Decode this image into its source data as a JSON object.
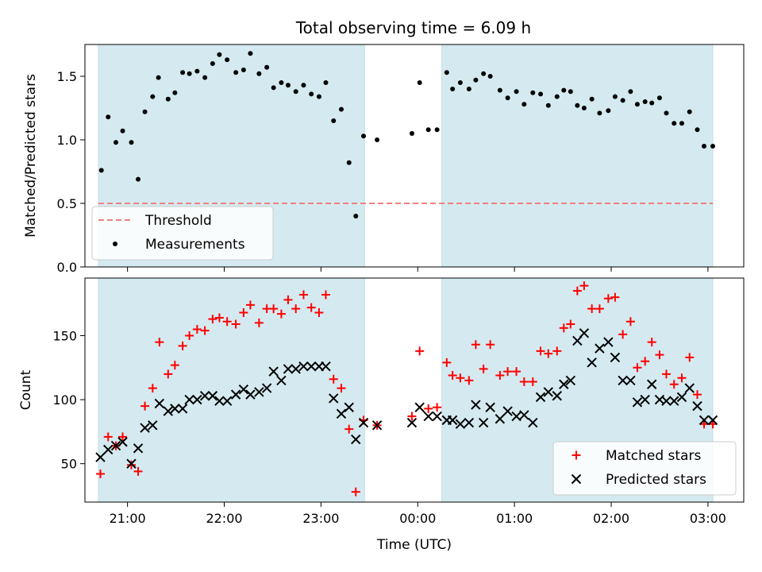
{
  "figure": {
    "title": "Total observing time = 6.09 h",
    "xlabel": "Time (UTC)",
    "x_ticks": [
      "21:00",
      "22:00",
      "23:00",
      "00:00",
      "01:00",
      "02:00",
      "03:00"
    ],
    "x_tick_hours": [
      21,
      22,
      23,
      24,
      25,
      26,
      27
    ],
    "xlim_hours": [
      20.56,
      27.37
    ],
    "shade_color": "#d4eaf0",
    "shaded_intervals_hours": [
      [
        20.7,
        23.45
      ],
      [
        24.25,
        27.05
      ]
    ]
  },
  "chart_data": [
    {
      "type": "scatter",
      "panel": "top",
      "ylabel": "Matched/Predicted stars",
      "ylim": [
        0,
        1.75
      ],
      "y_ticks": [
        0.0,
        0.5,
        1.0,
        1.5
      ],
      "y_tick_labels": [
        "0.0",
        "0.5",
        "1.0",
        "1.5"
      ],
      "legend_position": "lower-left",
      "threshold": {
        "name": "Threshold",
        "value": 0.5,
        "color": "#f08080",
        "x_range_hours": [
          20.7,
          27.05
        ]
      },
      "series": [
        {
          "name": "Measurements",
          "color": "#000000",
          "marker": "dot",
          "x": [
            20.73,
            20.8,
            20.88,
            20.95,
            21.04,
            21.11,
            21.18,
            21.26,
            21.32,
            21.42,
            21.49,
            21.57,
            21.64,
            21.72,
            21.8,
            21.88,
            21.95,
            22.03,
            22.12,
            22.2,
            22.27,
            22.36,
            22.44,
            22.51,
            22.59,
            22.66,
            22.74,
            22.82,
            22.9,
            22.98,
            23.05,
            23.13,
            23.21,
            23.29,
            23.36,
            23.44,
            23.58,
            23.94,
            24.02,
            24.11,
            24.2,
            24.3,
            24.36,
            24.44,
            24.53,
            24.6,
            24.68,
            24.75,
            24.85,
            24.93,
            25.02,
            25.1,
            25.19,
            25.27,
            25.35,
            25.44,
            25.51,
            25.58,
            25.65,
            25.72,
            25.8,
            25.88,
            25.97,
            26.04,
            26.12,
            26.2,
            26.27,
            26.35,
            26.42,
            26.5,
            26.57,
            26.65,
            26.73,
            26.81,
            26.89,
            26.96,
            27.05
          ],
          "y": [
            0.76,
            1.18,
            0.98,
            1.07,
            0.98,
            0.69,
            1.22,
            1.34,
            1.49,
            1.32,
            1.37,
            1.53,
            1.52,
            1.54,
            1.49,
            1.6,
            1.67,
            1.63,
            1.53,
            1.55,
            1.68,
            1.52,
            1.57,
            1.41,
            1.45,
            1.43,
            1.38,
            1.43,
            1.36,
            1.34,
            1.45,
            1.15,
            1.24,
            0.82,
            0.4,
            1.03,
            1.0,
            1.05,
            1.45,
            1.08,
            1.08,
            1.53,
            1.4,
            1.45,
            1.4,
            1.47,
            1.52,
            1.5,
            1.39,
            1.33,
            1.38,
            1.28,
            1.37,
            1.36,
            1.27,
            1.34,
            1.39,
            1.38,
            1.27,
            1.25,
            1.32,
            1.21,
            1.23,
            1.34,
            1.31,
            1.38,
            1.28,
            1.3,
            1.29,
            1.33,
            1.21,
            1.13,
            1.13,
            1.22,
            1.08,
            0.95,
            0.95
          ]
        }
      ]
    },
    {
      "type": "scatter",
      "panel": "bottom",
      "ylabel": "Count",
      "ylim": [
        20,
        195
      ],
      "y_ticks": [
        50,
        100,
        150
      ],
      "y_tick_labels": [
        "50",
        "100",
        "150"
      ],
      "legend_position": "lower-right",
      "series": [
        {
          "name": "Matched stars",
          "color": "#ff0000",
          "marker": "plus",
          "x": [
            20.72,
            20.8,
            20.88,
            20.95,
            21.04,
            21.11,
            21.18,
            21.26,
            21.33,
            21.42,
            21.49,
            21.57,
            21.64,
            21.72,
            21.8,
            21.88,
            21.95,
            22.03,
            22.12,
            22.2,
            22.27,
            22.36,
            22.44,
            22.51,
            22.59,
            22.66,
            22.74,
            22.82,
            22.9,
            22.98,
            23.05,
            23.13,
            23.21,
            23.29,
            23.36,
            23.44,
            23.58,
            23.94,
            24.02,
            24.11,
            24.2,
            24.3,
            24.36,
            24.44,
            24.53,
            24.6,
            24.68,
            24.75,
            24.85,
            24.93,
            25.02,
            25.1,
            25.19,
            25.27,
            25.35,
            25.44,
            25.51,
            25.58,
            25.65,
            25.72,
            25.8,
            25.88,
            25.97,
            26.04,
            26.12,
            26.2,
            26.27,
            26.35,
            26.42,
            26.5,
            26.57,
            26.65,
            26.73,
            26.81,
            26.89,
            26.96,
            27.05
          ],
          "y": [
            42,
            71,
            64,
            71,
            49,
            44,
            95,
            109,
            145,
            120,
            127,
            142,
            150,
            155,
            154,
            163,
            164,
            161,
            159,
            168,
            174,
            160,
            171,
            171,
            167,
            178,
            171,
            182,
            172,
            168,
            182,
            116,
            109,
            77,
            28,
            84,
            80,
            87,
            138,
            93,
            94,
            129,
            119,
            117,
            115,
            143,
            124,
            143,
            119,
            122,
            122,
            114,
            114,
            138,
            136,
            138,
            156,
            159,
            185,
            189,
            171,
            171,
            179,
            180,
            151,
            161,
            125,
            130,
            145,
            135,
            120,
            112,
            117,
            133,
            104,
            81,
            81
          ]
        },
        {
          "name": "Predicted stars",
          "color": "#000000",
          "marker": "x",
          "x": [
            20.72,
            20.8,
            20.88,
            20.95,
            21.04,
            21.11,
            21.18,
            21.26,
            21.33,
            21.42,
            21.49,
            21.57,
            21.64,
            21.72,
            21.8,
            21.88,
            21.95,
            22.03,
            22.12,
            22.2,
            22.27,
            22.36,
            22.44,
            22.51,
            22.59,
            22.66,
            22.74,
            22.82,
            22.9,
            22.98,
            23.05,
            23.13,
            23.21,
            23.29,
            23.36,
            23.44,
            23.58,
            23.94,
            24.02,
            24.11,
            24.2,
            24.3,
            24.36,
            24.44,
            24.53,
            24.6,
            24.68,
            24.75,
            24.85,
            24.93,
            25.02,
            25.1,
            25.19,
            25.27,
            25.35,
            25.44,
            25.51,
            25.58,
            25.65,
            25.72,
            25.8,
            25.88,
            25.97,
            26.04,
            26.12,
            26.2,
            26.27,
            26.35,
            26.42,
            26.5,
            26.57,
            26.65,
            26.73,
            26.81,
            26.89,
            26.96,
            27.05
          ],
          "y": [
            55,
            61,
            64,
            67,
            50,
            62,
            78,
            80,
            97,
            91,
            93,
            93,
            100,
            100,
            103,
            103,
            99,
            99,
            104,
            108,
            104,
            106,
            109,
            122,
            115,
            124,
            124,
            126,
            126,
            126,
            126,
            101,
            89,
            94,
            69,
            82,
            80,
            82,
            94,
            87,
            87,
            84,
            84,
            81,
            82,
            96,
            82,
            94,
            85,
            91,
            87,
            88,
            82,
            102,
            106,
            103,
            112,
            115,
            146,
            152,
            129,
            140,
            145,
            133,
            115,
            115,
            98,
            100,
            112,
            100,
            99,
            99,
            102,
            109,
            95,
            84,
            84
          ]
        }
      ]
    }
  ]
}
